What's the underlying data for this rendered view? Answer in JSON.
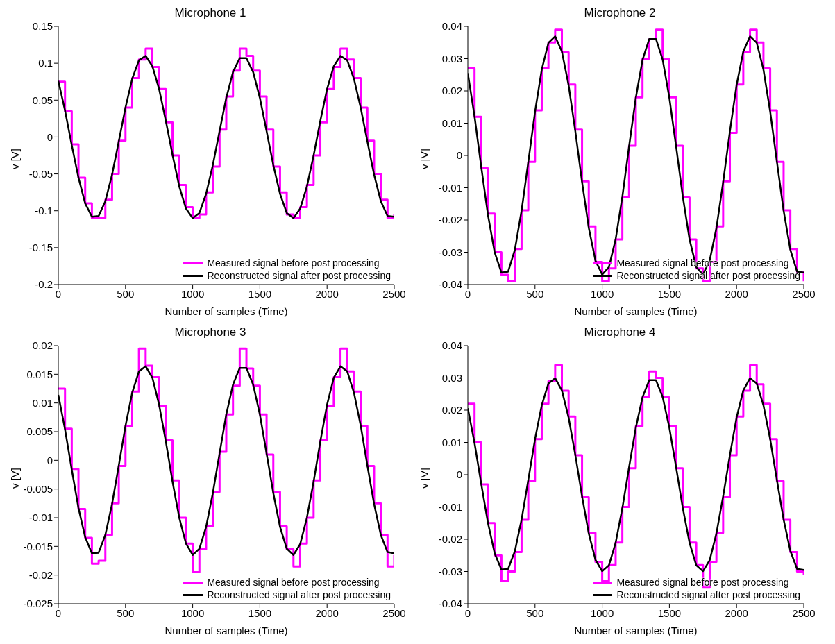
{
  "chart_data": [
    {
      "type": "line",
      "title": "Microphone 1",
      "xlabel": "Number of samples (Time)",
      "ylabel": "v [V]",
      "legend": "bottom right",
      "grid": false,
      "x": [
        0,
        50,
        100,
        150,
        200,
        250,
        300,
        350,
        400,
        450,
        500,
        550,
        600,
        650,
        700,
        750,
        800,
        850,
        900,
        950,
        1000,
        1050,
        1100,
        1150,
        1200,
        1250,
        1300,
        1350,
        1400,
        1450,
        1500,
        1550,
        1600,
        1650,
        1700,
        1750,
        1800,
        1850,
        1900,
        1950,
        2000,
        2050,
        2100,
        2150,
        2200,
        2250,
        2300,
        2350,
        2400,
        2450,
        2500
      ],
      "xlim": [
        0,
        2500
      ],
      "xticks": [
        0,
        500,
        1000,
        1500,
        2000,
        2500
      ],
      "ylim": [
        -0.2,
        0.15
      ],
      "yticks": [
        -0.2,
        -0.15,
        -0.1,
        -0.05,
        0,
        0.05,
        0.1,
        0.15
      ],
      "series": [
        {
          "name": "Measured signal before post processing",
          "type": "step",
          "color": "#ff00ff",
          "values": [
            0.075,
            0.035,
            -0.01,
            -0.055,
            -0.09,
            -0.11,
            -0.11,
            -0.085,
            -0.05,
            -0.005,
            0.04,
            0.08,
            0.105,
            0.12,
            0.095,
            0.065,
            0.02,
            -0.025,
            -0.065,
            -0.095,
            -0.11,
            -0.105,
            -0.075,
            -0.04,
            0.01,
            0.055,
            0.09,
            0.12,
            0.11,
            0.09,
            0.055,
            0.01,
            -0.04,
            -0.075,
            -0.105,
            -0.11,
            -0.095,
            -0.065,
            -0.025,
            0.02,
            0.065,
            0.095,
            0.12,
            0.105,
            0.08,
            0.04,
            -0.005,
            -0.05,
            -0.085,
            -0.11,
            -0.105
          ]
        },
        {
          "name": "Reconstructed signal after post processing",
          "type": "line",
          "color": "#000000",
          "values": [
            0.076,
            0.036,
            -0.011,
            -0.055,
            -0.09,
            -0.108,
            -0.107,
            -0.087,
            -0.051,
            -0.006,
            0.04,
            0.079,
            0.104,
            0.11,
            0.096,
            0.065,
            0.022,
            -0.024,
            -0.067,
            -0.097,
            -0.11,
            -0.103,
            -0.077,
            -0.038,
            0.008,
            0.053,
            0.088,
            0.107,
            0.107,
            0.088,
            0.053,
            0.008,
            -0.038,
            -0.077,
            -0.103,
            -0.11,
            -0.097,
            -0.067,
            -0.025,
            0.022,
            0.065,
            0.096,
            0.11,
            0.104,
            0.079,
            0.04,
            -0.006,
            -0.051,
            -0.087,
            -0.107,
            -0.108
          ]
        }
      ]
    },
    {
      "type": "line",
      "title": "Microphone 2",
      "xlabel": "Number of samples (Time)",
      "ylabel": "v [V]",
      "legend": "bottom right",
      "grid": false,
      "x": [
        0,
        50,
        100,
        150,
        200,
        250,
        300,
        350,
        400,
        450,
        500,
        550,
        600,
        650,
        700,
        750,
        800,
        850,
        900,
        950,
        1000,
        1050,
        1100,
        1150,
        1200,
        1250,
        1300,
        1350,
        1400,
        1450,
        1500,
        1550,
        1600,
        1650,
        1700,
        1750,
        1800,
        1850,
        1900,
        1950,
        2000,
        2050,
        2100,
        2150,
        2200,
        2250,
        2300,
        2350,
        2400,
        2450,
        2500
      ],
      "xlim": [
        0,
        2500
      ],
      "xticks": [
        0,
        500,
        1000,
        1500,
        2000,
        2500
      ],
      "ylim": [
        -0.04,
        0.04
      ],
      "yticks": [
        -0.04,
        -0.03,
        -0.02,
        -0.01,
        0,
        0.01,
        0.02,
        0.03,
        0.04
      ],
      "series": [
        {
          "name": "Measured signal before post processing",
          "type": "step",
          "color": "#ff00ff",
          "values": [
            0.027,
            0.012,
            -0.004,
            -0.018,
            -0.03,
            -0.037,
            -0.039,
            -0.029,
            -0.017,
            -0.002,
            0.014,
            0.027,
            0.035,
            0.039,
            0.032,
            0.022,
            0.008,
            -0.008,
            -0.022,
            -0.033,
            -0.039,
            -0.035,
            -0.026,
            -0.013,
            0.003,
            0.018,
            0.03,
            0.036,
            0.039,
            0.03,
            0.018,
            0.003,
            -0.013,
            -0.026,
            -0.035,
            -0.039,
            -0.033,
            -0.022,
            -0.008,
            0.007,
            0.022,
            0.032,
            0.039,
            0.035,
            0.027,
            0.014,
            -0.002,
            -0.017,
            -0.029,
            -0.036,
            -0.039
          ]
        },
        {
          "name": "Reconstructed signal after post processing",
          "type": "line",
          "color": "#000000",
          "values": [
            0.0255,
            0.0121,
            -0.0036,
            -0.0185,
            -0.0301,
            -0.0363,
            -0.036,
            -0.0292,
            -0.0171,
            -0.002,
            0.0135,
            0.0266,
            0.0349,
            0.0369,
            0.0322,
            0.0218,
            0.0075,
            -0.0082,
            -0.0224,
            -0.0326,
            -0.0369,
            -0.0346,
            -0.026,
            -0.0128,
            0.0028,
            0.0178,
            0.0296,
            0.0361,
            0.0361,
            0.0297,
            0.0178,
            0.0028,
            -0.0128,
            -0.026,
            -0.0346,
            -0.0369,
            -0.0326,
            -0.0225,
            -0.0083,
            0.0074,
            0.0218,
            0.0322,
            0.0369,
            0.0349,
            0.0266,
            0.0136,
            -0.0019,
            -0.0171,
            -0.0292,
            -0.036,
            -0.0363
          ]
        }
      ]
    },
    {
      "type": "line",
      "title": "Microphone 3",
      "xlabel": "Number of samples (Time)",
      "ylabel": "v [V]",
      "legend": "bottom right",
      "grid": false,
      "x": [
        0,
        50,
        100,
        150,
        200,
        250,
        300,
        350,
        400,
        450,
        500,
        550,
        600,
        650,
        700,
        750,
        800,
        850,
        900,
        950,
        1000,
        1050,
        1100,
        1150,
        1200,
        1250,
        1300,
        1350,
        1400,
        1450,
        1500,
        1550,
        1600,
        1650,
        1700,
        1750,
        1800,
        1850,
        1900,
        1950,
        2000,
        2050,
        2100,
        2150,
        2200,
        2250,
        2300,
        2350,
        2400,
        2450,
        2500
      ],
      "xlim": [
        0,
        2500
      ],
      "xticks": [
        0,
        500,
        1000,
        1500,
        2000,
        2500
      ],
      "ylim": [
        -0.025,
        0.02
      ],
      "yticks": [
        -0.025,
        -0.02,
        -0.015,
        -0.01,
        -0.005,
        0,
        0.005,
        0.01,
        0.015,
        0.02
      ],
      "series": [
        {
          "name": "Measured signal before post processing",
          "type": "step",
          "color": "#ff00ff",
          "values": [
            0.0125,
            0.0055,
            -0.0015,
            -0.0085,
            -0.0135,
            -0.018,
            -0.0175,
            -0.013,
            -0.0075,
            -0.001,
            0.006,
            0.012,
            0.0195,
            0.0165,
            0.0145,
            0.0095,
            0.0035,
            -0.0035,
            -0.01,
            -0.0145,
            -0.0195,
            -0.0155,
            -0.0115,
            -0.0055,
            0.0015,
            0.008,
            0.013,
            0.0195,
            0.016,
            0.013,
            0.008,
            0.001,
            -0.0055,
            -0.0115,
            -0.0155,
            -0.0185,
            -0.0145,
            -0.01,
            -0.0035,
            0.0035,
            0.0095,
            0.0145,
            0.0195,
            0.0155,
            0.012,
            0.006,
            -0.001,
            -0.0075,
            -0.013,
            -0.0185,
            -0.0165
          ]
        },
        {
          "name": "Reconstructed signal after post processing",
          "type": "line",
          "color": "#000000",
          "values": [
            0.0114,
            0.0054,
            -0.0016,
            -0.0083,
            -0.0134,
            -0.0162,
            -0.0161,
            -0.013,
            -0.0076,
            -0.0009,
            0.006,
            0.0118,
            0.0155,
            0.0164,
            0.0144,
            0.0097,
            0.0033,
            -0.0037,
            -0.01,
            -0.0145,
            -0.0165,
            -0.0154,
            -0.0116,
            -0.0057,
            0.0012,
            0.008,
            0.0132,
            0.0161,
            0.0161,
            0.0132,
            0.008,
            0.0012,
            -0.0057,
            -0.0116,
            -0.0154,
            -0.0165,
            -0.0146,
            -0.01,
            -0.0037,
            0.0033,
            0.0097,
            0.0144,
            0.0164,
            0.0155,
            0.0118,
            0.0061,
            -0.0009,
            -0.0076,
            -0.013,
            -0.016,
            -0.0162
          ]
        }
      ]
    },
    {
      "type": "line",
      "title": "Microphone 4",
      "xlabel": "Number of samples (Time)",
      "ylabel": "v [V]",
      "legend": "bottom right",
      "grid": false,
      "x": [
        0,
        50,
        100,
        150,
        200,
        250,
        300,
        350,
        400,
        450,
        500,
        550,
        600,
        650,
        700,
        750,
        800,
        850,
        900,
        950,
        1000,
        1050,
        1100,
        1150,
        1200,
        1250,
        1300,
        1350,
        1400,
        1450,
        1500,
        1550,
        1600,
        1650,
        1700,
        1750,
        1800,
        1850,
        1900,
        1950,
        2000,
        2050,
        2100,
        2150,
        2200,
        2250,
        2300,
        2350,
        2400,
        2450,
        2500
      ],
      "xlim": [
        0,
        2500
      ],
      "xticks": [
        0,
        500,
        1000,
        1500,
        2000,
        2500
      ],
      "ylim": [
        -0.04,
        0.04
      ],
      "yticks": [
        -0.04,
        -0.03,
        -0.02,
        -0.01,
        0,
        0.01,
        0.02,
        0.03,
        0.04
      ],
      "series": [
        {
          "name": "Measured signal before post processing",
          "type": "step",
          "color": "#ff00ff",
          "values": [
            0.022,
            0.01,
            -0.003,
            -0.015,
            -0.025,
            -0.033,
            -0.03,
            -0.024,
            -0.014,
            -0.002,
            0.011,
            0.022,
            0.029,
            0.034,
            0.026,
            0.018,
            0.006,
            -0.007,
            -0.018,
            -0.027,
            -0.033,
            -0.028,
            -0.021,
            -0.01,
            0.002,
            0.015,
            0.024,
            0.032,
            0.03,
            0.024,
            0.015,
            0.002,
            -0.01,
            -0.021,
            -0.028,
            -0.035,
            -0.027,
            -0.018,
            -0.007,
            0.006,
            0.018,
            0.026,
            0.034,
            0.028,
            0.022,
            0.011,
            -0.002,
            -0.014,
            -0.024,
            -0.03,
            -0.031
          ]
        },
        {
          "name": "Reconstructed signal after post processing",
          "type": "line",
          "color": "#000000",
          "values": [
            0.0206,
            0.0098,
            -0.0029,
            -0.015,
            -0.0244,
            -0.0294,
            -0.0292,
            -0.0237,
            -0.0139,
            -0.0016,
            0.011,
            0.0215,
            0.0283,
            0.0299,
            0.0261,
            0.0177,
            0.0061,
            -0.0067,
            -0.0182,
            -0.0264,
            -0.0299,
            -0.0281,
            -0.0211,
            -0.0104,
            0.0023,
            0.0145,
            0.024,
            0.0293,
            0.0293,
            0.0241,
            0.0145,
            0.0023,
            -0.0104,
            -0.0211,
            -0.0281,
            -0.0299,
            -0.0265,
            -0.0182,
            -0.0067,
            0.006,
            0.0177,
            0.0261,
            0.0299,
            0.0283,
            0.0215,
            0.011,
            -0.0016,
            -0.0139,
            -0.0236,
            -0.0292,
            -0.0295
          ]
        }
      ]
    }
  ]
}
